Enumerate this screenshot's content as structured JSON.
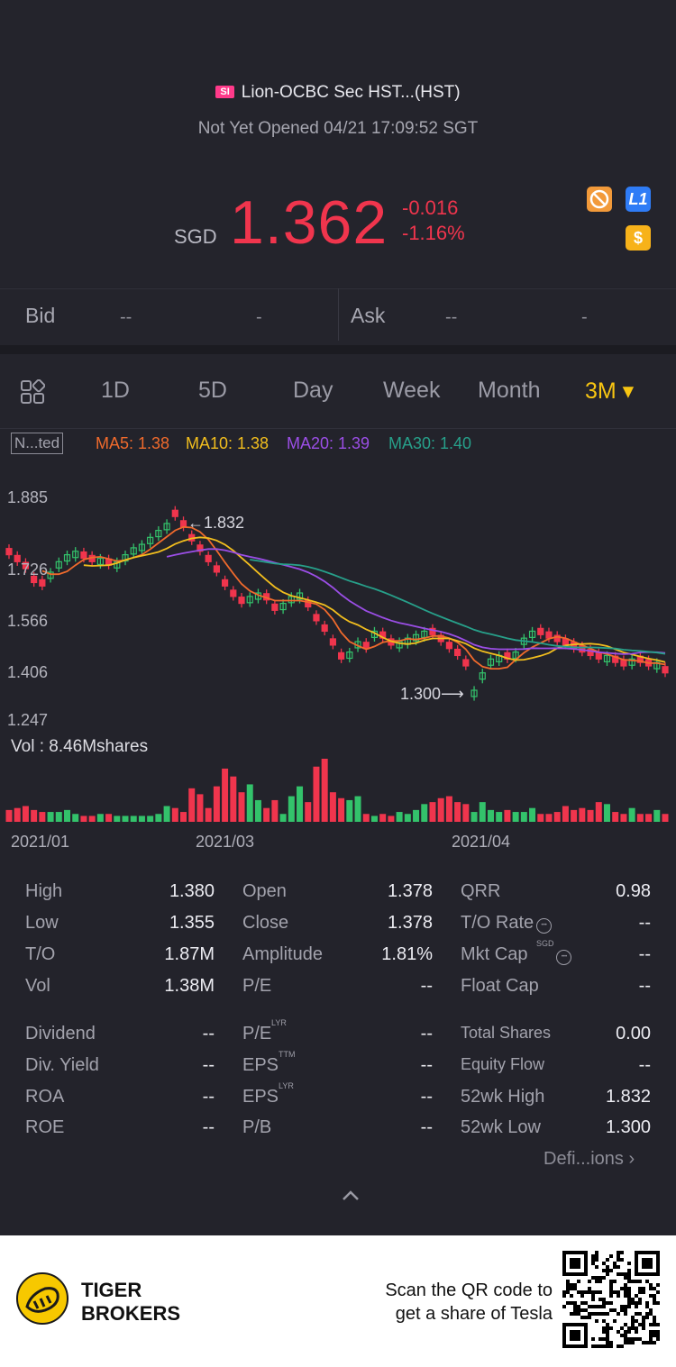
{
  "header": {
    "badge": "SI",
    "title": "Lion-OCBC Sec HST...(HST)",
    "status": "Not Yet Opened 04/21 17:09:52 SGT",
    "currency": "SGD",
    "price": "1.362",
    "change": "-0.016",
    "change_pct": "-1.16%",
    "icons": [
      "no-shorting-icon",
      "level1-icon",
      "dollar-icon"
    ],
    "icon_labels": {
      "level1": "L1",
      "dollar": "$"
    }
  },
  "bidask": {
    "bid_label": "Bid",
    "bid_price": "--",
    "bid_size": "-",
    "ask_label": "Ask",
    "ask_price": "--",
    "ask_size": "-"
  },
  "tabs": {
    "items": [
      "1D",
      "5D",
      "Day",
      "Week",
      "Month",
      "3M ▾"
    ],
    "active": "3M ▾",
    "grid_icon": "grid-layout-icon"
  },
  "indicators": {
    "adjust_label": "N...ted",
    "ma5": "MA5: 1.38",
    "ma10": "MA10: 1.38",
    "ma20": "MA20: 1.39",
    "ma30": "MA30: 1.40"
  },
  "colors": {
    "up": "#33c26b",
    "down": "#f0354d",
    "ma5": "#f06a2c",
    "ma10": "#f2be1e",
    "ma20": "#9b4ee6",
    "ma30": "#27a08a",
    "accent": "#f7c512"
  },
  "chart_data": {
    "type": "candlestick",
    "y_ticks": [
      "1.885",
      "1.726",
      "1.566",
      "1.406",
      "1.247"
    ],
    "ylim": [
      1.247,
      1.885
    ],
    "high_marker": "1.832",
    "low_marker": "1.300",
    "volume_label": "Vol  : 8.46Mshares",
    "date_labels": [
      "2021/01",
      "2021/03",
      "2021/04"
    ],
    "closes": [
      1.72,
      1.7,
      1.68,
      1.64,
      1.63,
      1.67,
      1.7,
      1.72,
      1.73,
      1.71,
      1.7,
      1.71,
      1.69,
      1.7,
      1.72,
      1.74,
      1.75,
      1.77,
      1.79,
      1.81,
      1.83,
      1.8,
      1.76,
      1.73,
      1.7,
      1.67,
      1.63,
      1.6,
      1.58,
      1.6,
      1.61,
      1.59,
      1.56,
      1.58,
      1.6,
      1.61,
      1.57,
      1.53,
      1.5,
      1.46,
      1.42,
      1.44,
      1.47,
      1.45,
      1.5,
      1.48,
      1.46,
      1.47,
      1.48,
      1.49,
      1.5,
      1.49,
      1.47,
      1.45,
      1.43,
      1.4,
      1.33,
      1.38,
      1.42,
      1.43,
      1.42,
      1.44,
      1.48,
      1.5,
      1.49,
      1.48,
      1.47,
      1.46,
      1.45,
      1.44,
      1.43,
      1.42,
      1.43,
      1.41,
      1.4,
      1.42,
      1.41,
      1.4,
      1.41,
      1.38
    ],
    "volumes": [
      0.6,
      0.7,
      0.8,
      0.6,
      0.5,
      0.5,
      0.5,
      0.6,
      0.4,
      0.3,
      0.3,
      0.4,
      0.4,
      0.3,
      0.3,
      0.3,
      0.3,
      0.3,
      0.4,
      0.8,
      0.7,
      0.5,
      1.7,
      1.4,
      0.7,
      1.8,
      2.7,
      2.3,
      1.5,
      1.9,
      1.1,
      0.7,
      1.1,
      0.4,
      1.3,
      1.8,
      1.0,
      2.8,
      3.2,
      1.5,
      1.2,
      1.1,
      1.3,
      0.4,
      0.3,
      0.4,
      0.3,
      0.5,
      0.4,
      0.6,
      0.9,
      1.0,
      1.2,
      1.3,
      1.0,
      0.9,
      0.5,
      1.0,
      0.6,
      0.5,
      0.6,
      0.5,
      0.5,
      0.7,
      0.4,
      0.4,
      0.5,
      0.8,
      0.6,
      0.7,
      0.6,
      1.0,
      0.9,
      0.5,
      0.4,
      0.7,
      0.4,
      0.4,
      0.6,
      0.4
    ],
    "direction": [
      "d",
      "d",
      "d",
      "d",
      "d",
      "u",
      "u",
      "u",
      "u",
      "d",
      "d",
      "u",
      "d",
      "u",
      "u",
      "u",
      "u",
      "u",
      "u",
      "u",
      "d",
      "d",
      "d",
      "d",
      "d",
      "d",
      "d",
      "d",
      "d",
      "u",
      "u",
      "d",
      "d",
      "u",
      "u",
      "u",
      "d",
      "d",
      "d",
      "d",
      "d",
      "u",
      "u",
      "d",
      "u",
      "d",
      "d",
      "u",
      "u",
      "u",
      "u",
      "d",
      "d",
      "d",
      "d",
      "d",
      "u",
      "u",
      "u",
      "u",
      "d",
      "u",
      "u",
      "u",
      "d",
      "d",
      "d",
      "d",
      "d",
      "d",
      "d",
      "d",
      "u",
      "d",
      "d",
      "u",
      "d",
      "d",
      "u",
      "d"
    ]
  },
  "stats": {
    "col1": [
      {
        "label": "High",
        "value": "1.380"
      },
      {
        "label": "Low",
        "value": "1.355"
      },
      {
        "label": "T/O",
        "value": "1.87M"
      },
      {
        "label": "Vol",
        "value": "1.38M"
      },
      {
        "label": "Dividend",
        "value": "--"
      },
      {
        "label": "Div. Yield",
        "value": "--"
      },
      {
        "label": "ROA",
        "value": "--"
      },
      {
        "label": "ROE",
        "value": "--"
      }
    ],
    "col2": [
      {
        "label": "Open",
        "value": "1.378"
      },
      {
        "label": "Close",
        "value": "1.378"
      },
      {
        "label": "Amplitude",
        "value": "1.81%"
      },
      {
        "label": "P/E",
        "value": "--"
      },
      {
        "label": "P/E",
        "sup": "LYR",
        "value": "--"
      },
      {
        "label": "EPS",
        "sup": "TTM",
        "value": "--"
      },
      {
        "label": "EPS",
        "sup": "LYR",
        "value": "--"
      },
      {
        "label": "P/B",
        "value": "--"
      }
    ],
    "col3": [
      {
        "label": "QRR",
        "value": "0.98"
      },
      {
        "label": "T/O Rate",
        "value": "--"
      },
      {
        "label": "Mkt Cap",
        "sup": "SGD",
        "value": "--"
      },
      {
        "label": "Float Cap",
        "value": "--"
      },
      {
        "label": "Total Shares",
        "value": "0.00"
      },
      {
        "label": "Equity Flow",
        "value": "--"
      },
      {
        "label": "52wk High",
        "value": "1.832"
      },
      {
        "label": "52wk Low",
        "value": "1.300"
      }
    ],
    "definitions": "Defi...ions",
    "collapse_icon": "chevron-up-icon"
  },
  "footer": {
    "brand_line1": "TIGER",
    "brand_line2": "BROKERS",
    "scan_line1": "Scan the QR code to",
    "scan_line2": "get a share of Tesla"
  }
}
